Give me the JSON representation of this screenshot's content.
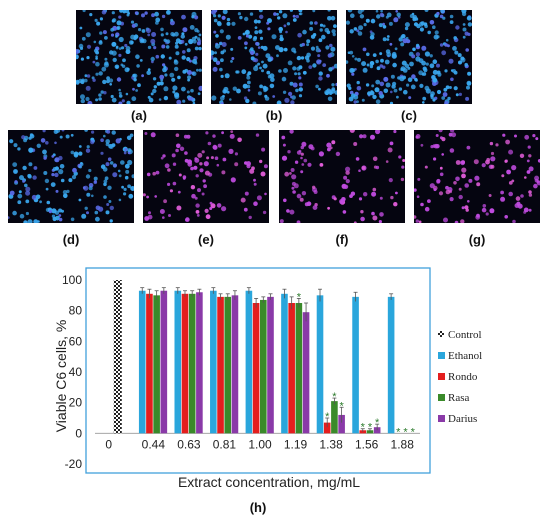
{
  "panels": [
    {
      "label": "(a)",
      "stain": "blue"
    },
    {
      "label": "(b)",
      "stain": "blue"
    },
    {
      "label": "(c)",
      "stain": "blue"
    },
    {
      "label": "(d)",
      "stain": "blue"
    },
    {
      "label": "(e)",
      "stain": "purple"
    },
    {
      "label": "(f)",
      "stain": "purple"
    },
    {
      "label": "(g)",
      "stain": "purple"
    }
  ],
  "colors": {
    "blue_stain": "#3aa8f0",
    "purple_stain": "#c04be0",
    "ethanol": "#2aa6dc",
    "rondo": "#e41e1e",
    "rasa": "#3a8a2a",
    "darius": "#8a3aa8",
    "plot_border": "#41a0dc",
    "significance": "#2a7a2a"
  },
  "chart_data": {
    "type": "bar",
    "panel_label": "(h)",
    "xlabel": "Extract concentration, mg/mL",
    "ylabel": "Viable C6 cells, %",
    "ylim": [
      -20,
      100
    ],
    "yticks": [
      "-20",
      "0",
      "20",
      "40",
      "60",
      "80",
      "100"
    ],
    "categories": [
      "0",
      "0.44",
      "0.63",
      "0.81",
      "1.00",
      "1.19",
      "1.38",
      "1.56",
      "1.88"
    ],
    "legend_position": "right",
    "significance_mark": "*",
    "series": [
      {
        "name": "Control",
        "values": [
          100,
          null,
          null,
          null,
          null,
          null,
          null,
          null,
          null
        ],
        "pattern": "checker"
      },
      {
        "name": "Ethanol",
        "values": [
          null,
          93,
          93,
          93,
          93,
          91,
          90,
          89,
          89
        ]
      },
      {
        "name": "Rondo",
        "values": [
          null,
          91,
          91,
          89,
          85,
          85,
          7,
          2,
          0
        ]
      },
      {
        "name": "Rasa",
        "values": [
          null,
          90,
          91,
          89,
          87,
          85,
          21,
          2,
          0
        ]
      },
      {
        "name": "Darius",
        "values": [
          null,
          93,
          92,
          90,
          89,
          79,
          12,
          4,
          0
        ]
      }
    ],
    "errors": {
      "Ethanol": [
        null,
        2,
        2,
        2,
        2,
        3,
        4,
        3,
        2
      ],
      "Rondo": [
        null,
        3,
        2,
        2,
        3,
        4,
        3,
        1,
        0
      ],
      "Rasa": [
        null,
        3,
        2,
        2,
        2,
        3,
        2,
        1,
        0
      ],
      "Darius": [
        null,
        2,
        2,
        3,
        2,
        6,
        5,
        2,
        0
      ]
    },
    "significant": {
      "Rondo": [
        6,
        7,
        8
      ],
      "Rasa": [
        5,
        6,
        7,
        8
      ],
      "Darius": [
        6,
        7,
        8
      ]
    }
  }
}
